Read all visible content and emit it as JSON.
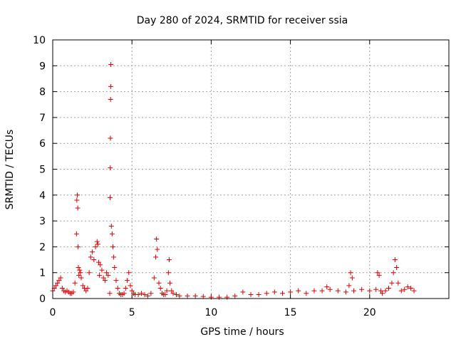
{
  "chart_data": {
    "type": "scatter",
    "title": "Day 280 of 2024, SRMTID for receiver ssia",
    "xlabel": "GPS time / hours",
    "ylabel": "SRMTID / TECUs",
    "xlim": [
      0,
      25
    ],
    "ylim": [
      0,
      10
    ],
    "xticks": [
      0,
      5,
      10,
      15,
      20
    ],
    "yticks": [
      0,
      1,
      2,
      3,
      4,
      5,
      6,
      7,
      8,
      9,
      10
    ],
    "xtick_labels": [
      "0",
      "5",
      "10",
      "15",
      "20"
    ],
    "ytick_labels": [
      "0",
      "1",
      "2",
      "3",
      "4",
      "5",
      "6",
      "7",
      "8",
      "9",
      "10"
    ],
    "grid": true,
    "marker": "+",
    "color": "#e00000",
    "series": [
      {
        "name": "SRMTID",
        "x": [
          0.0,
          0.1,
          0.2,
          0.3,
          0.4,
          0.5,
          0.6,
          0.7,
          0.8,
          0.9,
          1.0,
          1.1,
          1.2,
          1.3,
          1.4,
          1.5,
          1.52,
          1.55,
          1.58,
          1.6,
          1.62,
          1.65,
          1.7,
          1.75,
          1.8,
          1.9,
          2.0,
          2.1,
          2.2,
          2.3,
          2.4,
          2.5,
          2.6,
          2.7,
          2.8,
          2.85,
          2.9,
          2.95,
          3.0,
          3.1,
          3.2,
          3.3,
          3.4,
          3.5,
          3.6,
          3.62,
          3.63,
          3.64,
          3.65,
          3.66,
          3.67,
          3.7,
          3.75,
          3.8,
          3.85,
          3.9,
          4.0,
          4.1,
          4.2,
          4.3,
          4.4,
          4.5,
          4.6,
          4.7,
          4.8,
          4.9,
          5.0,
          5.1,
          5.2,
          5.4,
          5.6,
          5.8,
          6.0,
          6.2,
          6.4,
          6.5,
          6.55,
          6.6,
          6.7,
          6.8,
          6.9,
          7.0,
          7.1,
          7.2,
          7.3,
          7.35,
          7.4,
          7.5,
          7.6,
          7.8,
          8.0,
          8.5,
          9.0,
          9.5,
          10.0,
          10.5,
          11.0,
          11.5,
          12.0,
          12.5,
          13.0,
          13.5,
          14.0,
          14.5,
          15.0,
          15.5,
          16.0,
          16.5,
          17.0,
          17.3,
          17.5,
          18.0,
          18.5,
          18.7,
          18.8,
          18.9,
          19.0,
          19.5,
          20.0,
          20.4,
          20.5,
          20.6,
          20.7,
          20.8,
          21.0,
          21.2,
          21.4,
          21.5,
          21.6,
          21.7,
          21.8,
          22.0,
          22.2,
          22.4,
          22.6,
          22.8
        ],
        "y": [
          0.3,
          0.4,
          0.5,
          0.6,
          0.7,
          0.8,
          0.4,
          0.3,
          0.25,
          0.3,
          0.25,
          0.2,
          0.2,
          0.25,
          0.6,
          2.5,
          3.8,
          4.0,
          3.5,
          2.0,
          1.2,
          0.9,
          1.1,
          1.0,
          0.8,
          0.5,
          0.4,
          0.3,
          0.4,
          1.0,
          1.6,
          1.8,
          1.5,
          2.0,
          2.2,
          2.1,
          1.4,
          0.9,
          1.3,
          1.1,
          0.8,
          0.7,
          1.0,
          0.9,
          0.2,
          3.9,
          5.05,
          6.2,
          7.7,
          8.2,
          9.05,
          2.8,
          2.5,
          2.0,
          1.6,
          1.2,
          0.7,
          0.4,
          0.2,
          0.15,
          0.15,
          0.2,
          0.4,
          0.7,
          1.0,
          0.5,
          0.3,
          0.2,
          0.15,
          0.15,
          0.2,
          0.15,
          0.1,
          0.2,
          0.8,
          1.6,
          2.3,
          1.9,
          0.6,
          0.4,
          0.2,
          0.15,
          0.15,
          0.3,
          1.0,
          1.5,
          0.6,
          0.3,
          0.2,
          0.15,
          0.1,
          0.1,
          0.1,
          0.08,
          0.05,
          0.05,
          0.05,
          0.1,
          0.25,
          0.15,
          0.15,
          0.2,
          0.25,
          0.2,
          0.25,
          0.3,
          0.2,
          0.3,
          0.3,
          0.45,
          0.35,
          0.3,
          0.25,
          0.5,
          1.0,
          0.8,
          0.3,
          0.35,
          0.3,
          0.35,
          1.0,
          0.9,
          0.3,
          0.2,
          0.3,
          0.4,
          0.6,
          1.0,
          1.5,
          1.2,
          0.6,
          0.3,
          0.35,
          0.45,
          0.4,
          0.3
        ]
      }
    ]
  }
}
